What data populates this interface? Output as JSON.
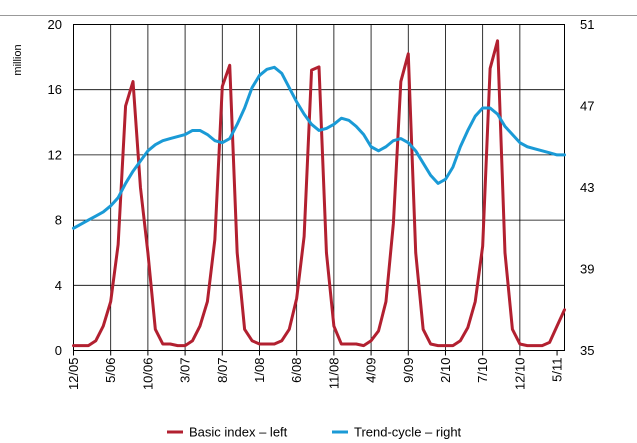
{
  "chart_data": {
    "type": "line",
    "unit_left": "million",
    "categories_count": 67,
    "x_tick_labels": [
      "12/05",
      "5/06",
      "10/06",
      "3/07",
      "8/07",
      "1/08",
      "6/08",
      "11/08",
      "4/09",
      "9/09",
      "2/10",
      "7/10",
      "12/10",
      "5/11"
    ],
    "y_left": {
      "ticks": [
        "0",
        "4",
        "8",
        "12",
        "16",
        "20"
      ],
      "range": [
        0,
        20
      ]
    },
    "y_right": {
      "ticks": [
        "35",
        "39",
        "43",
        "47",
        "51"
      ],
      "range": [
        35,
        51
      ]
    },
    "grid": "vertical-and-horizontal",
    "legend_position": "bottom",
    "series": [
      {
        "name": "Basic index – left",
        "axis": "left",
        "color": "#b22030",
        "values": [
          0.3,
          0.3,
          0.3,
          0.6,
          1.5,
          3.0,
          6.5,
          15.0,
          16.5,
          10.0,
          6.0,
          1.3,
          0.4,
          0.4,
          0.3,
          0.3,
          0.6,
          1.5,
          3.0,
          6.8,
          16.2,
          17.5,
          6.0,
          1.3,
          0.6,
          0.4,
          0.4,
          0.4,
          0.6,
          1.3,
          3.2,
          7.0,
          17.2,
          17.4,
          6.0,
          1.5,
          0.4,
          0.4,
          0.4,
          0.3,
          0.6,
          1.2,
          3.0,
          7.8,
          16.5,
          18.2,
          6.0,
          1.3,
          0.4,
          0.3,
          0.3,
          0.3,
          0.6,
          1.4,
          3.0,
          6.4,
          17.3,
          19.0,
          6.0,
          1.3,
          0.4,
          0.3,
          0.3,
          0.3,
          0.5,
          1.5,
          2.5
        ]
      },
      {
        "name": "Trend-cycle – right",
        "axis": "right",
        "color": "#1a9ad6",
        "values": [
          41.0,
          41.2,
          41.4,
          41.6,
          41.8,
          42.1,
          42.5,
          43.2,
          43.8,
          44.3,
          44.8,
          45.1,
          45.3,
          45.4,
          45.5,
          45.6,
          45.8,
          45.8,
          45.6,
          45.3,
          45.2,
          45.4,
          46.1,
          46.9,
          47.9,
          48.5,
          48.8,
          48.9,
          48.6,
          47.9,
          47.2,
          46.6,
          46.1,
          45.8,
          45.9,
          46.1,
          46.4,
          46.3,
          46.0,
          45.6,
          45.0,
          44.8,
          45.0,
          45.3,
          45.4,
          45.2,
          44.8,
          44.2,
          43.6,
          43.2,
          43.4,
          44.0,
          45.0,
          45.8,
          46.5,
          46.9,
          46.9,
          46.6,
          46.0,
          45.6,
          45.2,
          45.0,
          44.9,
          44.8,
          44.7,
          44.6,
          44.6
        ]
      }
    ]
  }
}
